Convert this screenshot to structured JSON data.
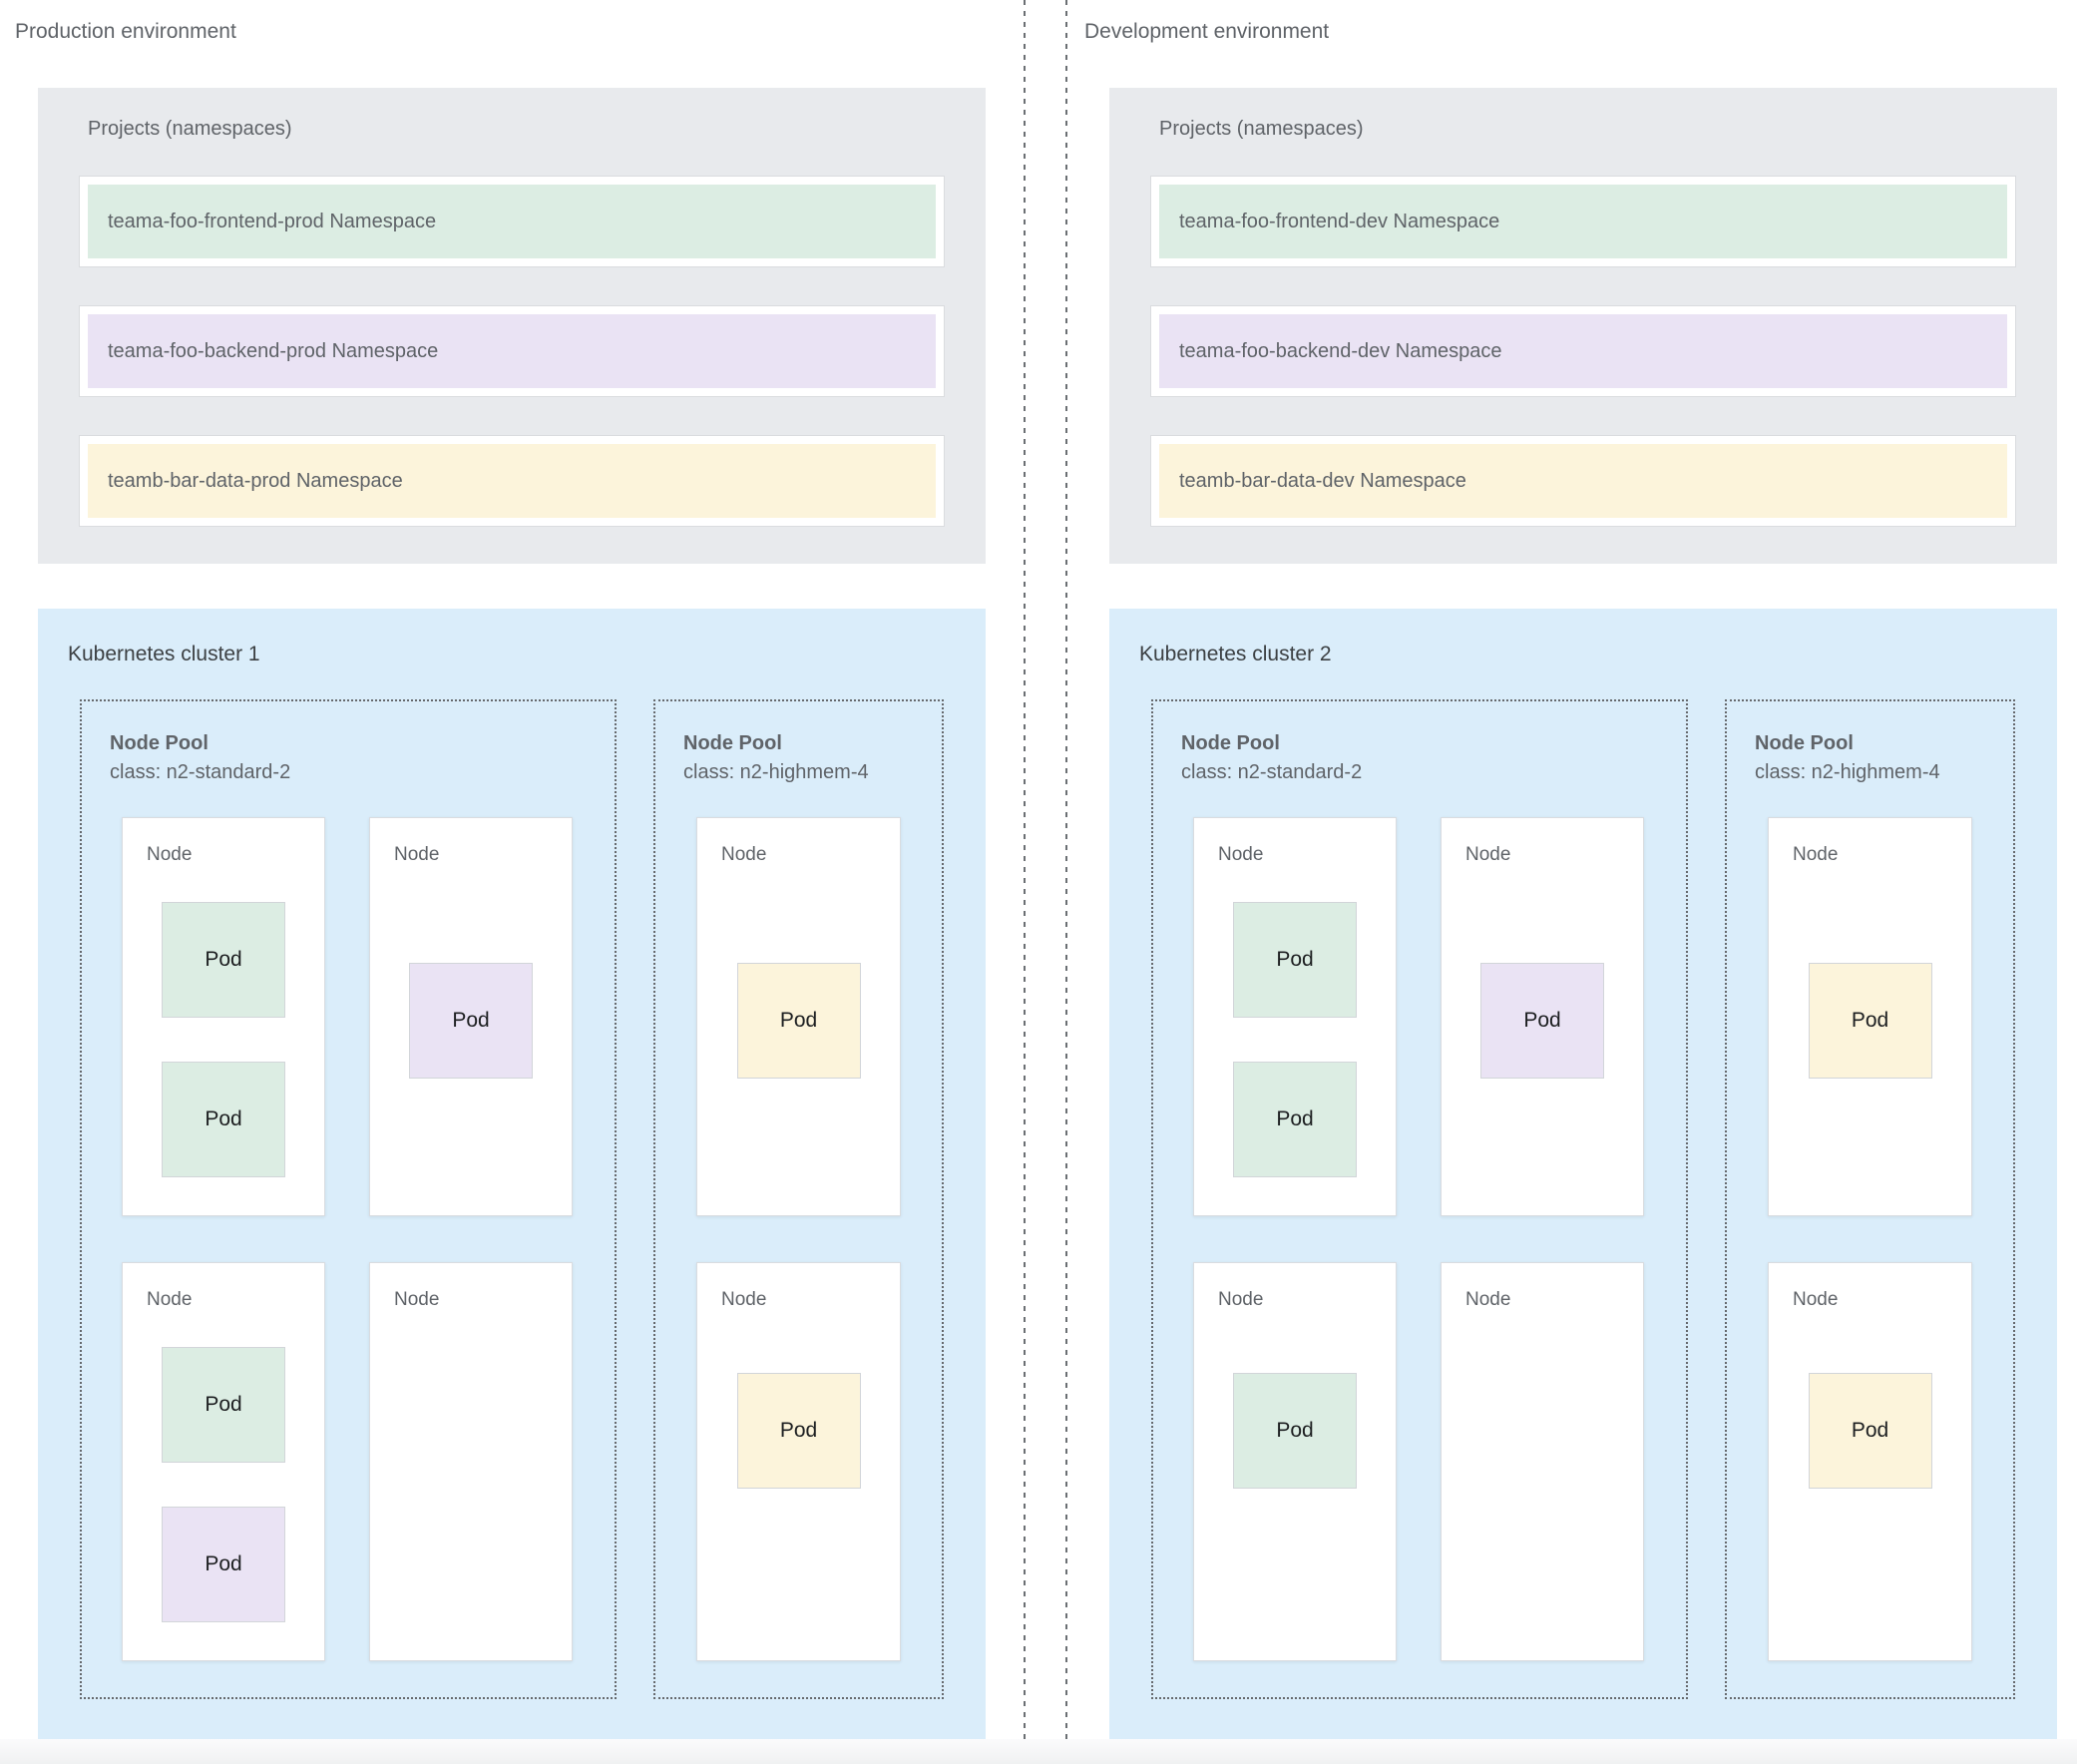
{
  "diagram": {
    "colors": {
      "green": "#dcede3",
      "purple": "#eae3f4",
      "yellow": "#fcf4db",
      "cluster_background": "#daedfa",
      "projects_background": "#e8eaed",
      "node_background": "#ffffff",
      "label_gray": "#5f6368"
    },
    "environments": [
      {
        "title": "Production environment",
        "projects": {
          "title": "Projects (namespaces)",
          "namespaces": [
            {
              "label": "teama-foo-frontend-prod Namespace",
              "color_name": "green"
            },
            {
              "label": "teama-foo-backend-prod Namespace",
              "color_name": "purple"
            },
            {
              "label": "teamb-bar-data-prod Namespace",
              "color_name": "yellow"
            }
          ]
        },
        "cluster": {
          "title": "Kubernetes cluster 1",
          "node_pools": [
            {
              "title": "Node Pool",
              "machine_class": "class: n2-standard-2",
              "nodes": [
                {
                  "label": "Node",
                  "pods": [
                    {
                      "label": "Pod",
                      "color_name": "green"
                    },
                    {
                      "label": "Pod",
                      "color_name": "green"
                    }
                  ]
                },
                {
                  "label": "Node",
                  "pods": [
                    {
                      "label": "Pod",
                      "color_name": "purple"
                    }
                  ]
                },
                {
                  "label": "Node",
                  "pods": [
                    {
                      "label": "Pod",
                      "color_name": "green"
                    },
                    {
                      "label": "Pod",
                      "color_name": "purple"
                    }
                  ]
                },
                {
                  "label": "Node",
                  "pods": []
                }
              ]
            },
            {
              "title": "Node Pool",
              "machine_class": "class: n2-highmem-4",
              "nodes": [
                {
                  "label": "Node",
                  "pods": [
                    {
                      "label": "Pod",
                      "color_name": "yellow"
                    }
                  ]
                },
                {
                  "label": "Node",
                  "pods": [
                    {
                      "label": "Pod",
                      "color_name": "yellow"
                    }
                  ]
                }
              ]
            }
          ]
        }
      },
      {
        "title": "Development environment",
        "projects": {
          "title": "Projects (namespaces)",
          "namespaces": [
            {
              "label": "teama-foo-frontend-dev Namespace",
              "color_name": "green"
            },
            {
              "label": "teama-foo-backend-dev Namespace",
              "color_name": "purple"
            },
            {
              "label": "teamb-bar-data-dev Namespace",
              "color_name": "yellow"
            }
          ]
        },
        "cluster": {
          "title": "Kubernetes cluster 2",
          "node_pools": [
            {
              "title": "Node Pool",
              "machine_class": "class: n2-standard-2",
              "nodes": [
                {
                  "label": "Node",
                  "pods": [
                    {
                      "label": "Pod",
                      "color_name": "green"
                    },
                    {
                      "label": "Pod",
                      "color_name": "green"
                    }
                  ]
                },
                {
                  "label": "Node",
                  "pods": [
                    {
                      "label": "Pod",
                      "color_name": "purple"
                    }
                  ]
                },
                {
                  "label": "Node",
                  "pods": [
                    {
                      "label": "Pod",
                      "color_name": "green"
                    }
                  ]
                },
                {
                  "label": "Node",
                  "pods": []
                }
              ]
            },
            {
              "title": "Node Pool",
              "machine_class": "class: n2-highmem-4",
              "nodes": [
                {
                  "label": "Node",
                  "pods": [
                    {
                      "label": "Pod",
                      "color_name": "yellow"
                    }
                  ]
                },
                {
                  "label": "Node",
                  "pods": [
                    {
                      "label": "Pod",
                      "color_name": "yellow"
                    }
                  ]
                }
              ]
            }
          ]
        }
      }
    ]
  }
}
